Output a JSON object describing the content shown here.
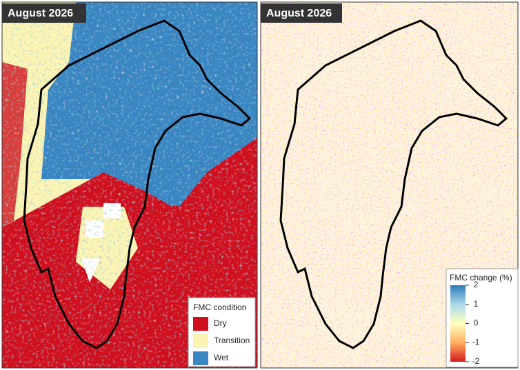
{
  "left_panel": {
    "title": "August 2026",
    "legend": {
      "title": "FMC condition",
      "items": [
        {
          "label": "Dry",
          "color": "#d0101e"
        },
        {
          "label": "Transition",
          "color": "#fbf4b4"
        },
        {
          "label": "Wet",
          "color": "#3a86c2"
        }
      ]
    }
  },
  "right_panel": {
    "title": "August 2026",
    "colorbar": {
      "title": "FMC change (%)",
      "lim": [
        -2,
        2
      ],
      "ticks": [
        2,
        1,
        0,
        -1,
        -2
      ],
      "colors": [
        "#d7191c",
        "#fdae61",
        "#ffffbf",
        "#abd9e9",
        "#2c7bb6"
      ]
    }
  }
}
